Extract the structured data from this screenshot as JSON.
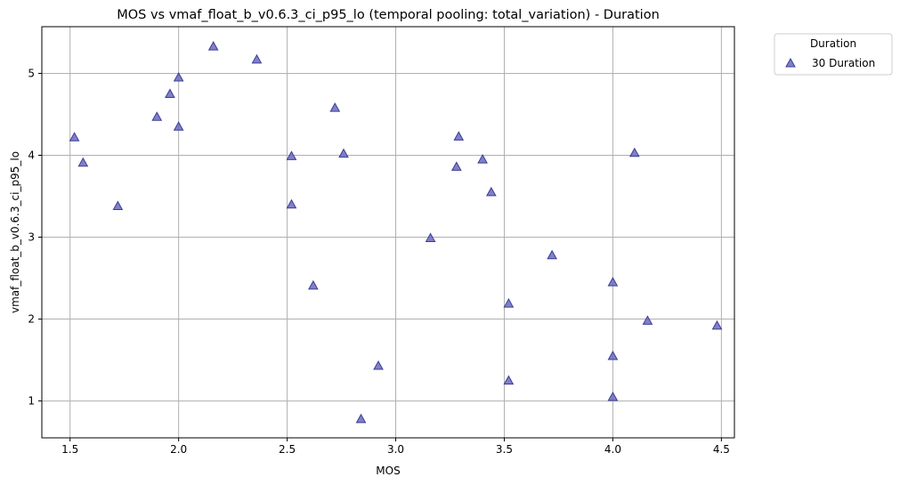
{
  "chart_data": {
    "type": "scatter",
    "title": "MOS vs vmaf_float_b_v0.6.3_ci_p95_lo (temporal pooling: total_variation) - Duration",
    "xlabel": "MOS",
    "ylabel": "vmaf_float_b_v0.6.3_ci_p95_lo",
    "xlim": [
      1.37,
      4.56
    ],
    "ylim": [
      0.55,
      5.57
    ],
    "xticks": [
      "1.5",
      "2.0",
      "2.5",
      "3.0",
      "3.5",
      "4.0",
      "4.5"
    ],
    "yticks": [
      "1",
      "2",
      "3",
      "4",
      "5"
    ],
    "xtick_values": [
      1.5,
      2.0,
      2.5,
      3.0,
      3.5,
      4.0,
      4.5
    ],
    "ytick_values": [
      1,
      2,
      3,
      4,
      5
    ],
    "grid": true,
    "legend": {
      "title": "Duration",
      "placement": "outside-top-right"
    },
    "marker": "triangle",
    "color": "#6a6abf",
    "edge_color": "#3c3c96",
    "series": [
      {
        "name": "30 Duration",
        "points": [
          [
            1.52,
            4.22
          ],
          [
            1.56,
            3.91
          ],
          [
            1.72,
            3.38
          ],
          [
            1.9,
            4.47
          ],
          [
            1.96,
            4.75
          ],
          [
            2.0,
            4.95
          ],
          [
            2.0,
            4.35
          ],
          [
            2.16,
            5.33
          ],
          [
            2.36,
            5.17
          ],
          [
            2.52,
            3.99
          ],
          [
            2.52,
            3.4
          ],
          [
            2.62,
            2.41
          ],
          [
            2.72,
            4.58
          ],
          [
            2.76,
            4.02
          ],
          [
            2.84,
            0.78
          ],
          [
            2.92,
            1.43
          ],
          [
            3.16,
            2.99
          ],
          [
            3.28,
            3.86
          ],
          [
            3.29,
            4.23
          ],
          [
            3.4,
            3.95
          ],
          [
            3.44,
            3.55
          ],
          [
            3.52,
            2.19
          ],
          [
            3.52,
            1.25
          ],
          [
            3.72,
            2.78
          ],
          [
            4.0,
            2.45
          ],
          [
            4.0,
            1.55
          ],
          [
            4.0,
            1.05
          ],
          [
            4.1,
            4.03
          ],
          [
            4.16,
            1.98
          ],
          [
            4.48,
            1.92
          ]
        ]
      }
    ]
  }
}
